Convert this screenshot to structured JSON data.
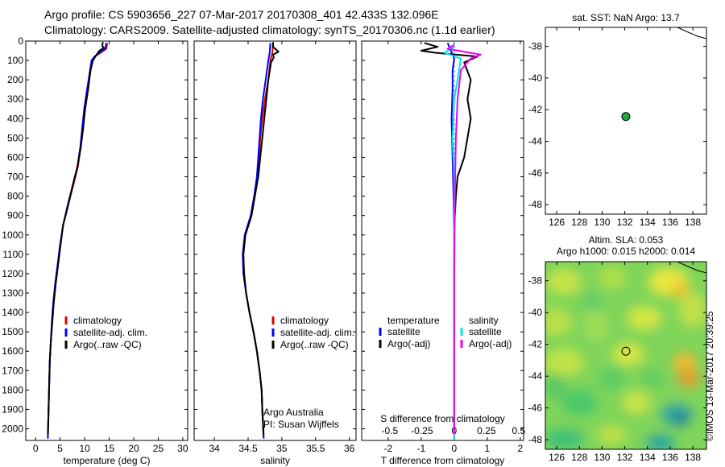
{
  "title_line1": "Argo profile: CS 5903656_227 07-Mar-2017 20170308_401 42.433S 132.096E",
  "title_line2": "Climatology: CARS2009. Satellite-adjusted climatology: synTS_20170306.nc (1.1d earlier)",
  "sst_title": "sat. SST: NaN Argo: 13.7",
  "sla_title1": "Altim. SLA: 0.053",
  "sla_title2": "Argo h1000: 0.015 h2000: 0.014",
  "watermark": "©IMOS 13-Mar-2017 20:39:25",
  "credits": [
    "Argo Australia",
    "PI: Susan Wijffels"
  ],
  "colors": {
    "climatology": "#e00000",
    "satellite": "#0000ff",
    "argo": "#000000",
    "sal_sat": "#00e5ee",
    "sal_argo": "#ee00ee"
  },
  "chart_data": [
    {
      "type": "line",
      "id": "temperature",
      "xlabel": "temperature (deg C)",
      "xlim": [
        -2,
        31
      ],
      "ylim": [
        2060,
        0
      ],
      "xticks": [
        0,
        5,
        10,
        15,
        20,
        25,
        30
      ],
      "yticks": [
        0,
        100,
        200,
        300,
        400,
        500,
        600,
        700,
        800,
        900,
        1000,
        1100,
        1200,
        1300,
        1400,
        1500,
        1600,
        1700,
        1800,
        1900,
        2000
      ],
      "legend": [
        "climatology",
        "satellite-adj. clim.",
        "Argo(..raw -QC)"
      ],
      "series": [
        {
          "name": "climatology",
          "pts": [
            [
              14.6,
              10
            ],
            [
              14.4,
              40
            ],
            [
              13.3,
              60
            ],
            [
              12.0,
              80
            ],
            [
              11.6,
              100
            ],
            [
              11.2,
              150
            ],
            [
              10.6,
              250
            ],
            [
              10.0,
              350
            ],
            [
              9.6,
              450
            ],
            [
              9.2,
              550
            ],
            [
              8.6,
              650
            ],
            [
              7.6,
              750
            ],
            [
              6.6,
              850
            ],
            [
              5.6,
              950
            ],
            [
              5.1,
              1050
            ],
            [
              4.6,
              1150
            ],
            [
              4.1,
              1250
            ],
            [
              3.7,
              1350
            ],
            [
              3.4,
              1450
            ],
            [
              3.1,
              1550
            ],
            [
              2.9,
              1650
            ],
            [
              2.8,
              1750
            ],
            [
              2.7,
              1850
            ],
            [
              2.6,
              1950
            ],
            [
              2.5,
              2050
            ]
          ]
        },
        {
          "name": "satellite-adj. clim.",
          "pts": [
            [
              14.4,
              10
            ],
            [
              14.2,
              40
            ],
            [
              13.0,
              60
            ],
            [
              12.0,
              80
            ],
            [
              11.4,
              100
            ],
            [
              11.1,
              150
            ],
            [
              10.5,
              250
            ],
            [
              9.9,
              350
            ],
            [
              9.5,
              450
            ],
            [
              9.1,
              550
            ],
            [
              8.5,
              650
            ],
            [
              7.5,
              750
            ],
            [
              6.5,
              850
            ],
            [
              5.6,
              950
            ],
            [
              5.0,
              1050
            ],
            [
              4.5,
              1150
            ],
            [
              4.0,
              1250
            ],
            [
              3.6,
              1350
            ],
            [
              3.3,
              1450
            ],
            [
              3.1,
              1550
            ],
            [
              2.9,
              1650
            ],
            [
              2.8,
              1750
            ],
            [
              2.7,
              1850
            ],
            [
              2.6,
              1950
            ],
            [
              2.5,
              2050
            ]
          ]
        },
        {
          "name": "Argo(..raw -QC)",
          "pts": [
            [
              13.7,
              5
            ],
            [
              13.6,
              25
            ],
            [
              13.9,
              35
            ],
            [
              13.0,
              50
            ],
            [
              12.3,
              75
            ],
            [
              11.7,
              100
            ],
            [
              11.2,
              150
            ],
            [
              10.7,
              250
            ],
            [
              10.1,
              350
            ],
            [
              9.7,
              450
            ],
            [
              9.2,
              550
            ],
            [
              8.5,
              650
            ],
            [
              7.5,
              750
            ],
            [
              6.6,
              850
            ],
            [
              5.6,
              950
            ],
            [
              5.1,
              1050
            ],
            [
              4.6,
              1150
            ],
            [
              4.1,
              1250
            ],
            [
              3.7,
              1350
            ],
            [
              3.4,
              1450
            ],
            [
              3.1,
              1550
            ],
            [
              2.9,
              1650
            ],
            [
              2.8,
              1750
            ],
            [
              2.7,
              1850
            ],
            [
              2.6,
              1950
            ],
            [
              2.5,
              2030
            ]
          ]
        }
      ]
    },
    {
      "type": "line",
      "id": "salinity",
      "xlabel": "salinity",
      "xlim": [
        33.7,
        36.1
      ],
      "ylim": [
        2060,
        0
      ],
      "xticks": [
        34,
        34.5,
        35,
        35.5,
        36
      ],
      "legend": [
        "climatology",
        "satellite-adj. clim.",
        "Argo(..raw -QC)"
      ],
      "series": [
        {
          "name": "climatology",
          "pts": [
            [
              34.87,
              10
            ],
            [
              34.86,
              60
            ],
            [
              34.83,
              100
            ],
            [
              34.8,
              200
            ],
            [
              34.75,
              300
            ],
            [
              34.71,
              400
            ],
            [
              34.68,
              500
            ],
            [
              34.66,
              600
            ],
            [
              34.64,
              700
            ],
            [
              34.6,
              800
            ],
            [
              34.55,
              900
            ],
            [
              34.46,
              1000
            ],
            [
              34.43,
              1100
            ],
            [
              34.44,
              1200
            ],
            [
              34.47,
              1300
            ],
            [
              34.52,
              1400
            ],
            [
              34.58,
              1500
            ],
            [
              34.63,
              1600
            ],
            [
              34.67,
              1700
            ],
            [
              34.7,
              1800
            ],
            [
              34.71,
              1900
            ],
            [
              34.73,
              2050
            ]
          ]
        },
        {
          "name": "satellite-adj. clim.",
          "pts": [
            [
              34.83,
              10
            ],
            [
              34.82,
              60
            ],
            [
              34.8,
              100
            ],
            [
              34.76,
              200
            ],
            [
              34.72,
              300
            ],
            [
              34.69,
              400
            ],
            [
              34.67,
              500
            ],
            [
              34.65,
              600
            ],
            [
              34.63,
              700
            ],
            [
              34.59,
              800
            ],
            [
              34.54,
              900
            ],
            [
              34.45,
              1000
            ],
            [
              34.42,
              1100
            ],
            [
              34.43,
              1200
            ],
            [
              34.47,
              1300
            ],
            [
              34.52,
              1400
            ],
            [
              34.58,
              1500
            ],
            [
              34.63,
              1600
            ],
            [
              34.67,
              1700
            ],
            [
              34.7,
              1800
            ],
            [
              34.71,
              1900
            ],
            [
              34.73,
              2050
            ]
          ]
        },
        {
          "name": "Argo(..raw -QC)",
          "pts": [
            [
              34.87,
              5
            ],
            [
              34.87,
              30
            ],
            [
              34.95,
              55
            ],
            [
              34.87,
              70
            ],
            [
              34.88,
              85
            ],
            [
              34.84,
              110
            ],
            [
              34.8,
              200
            ],
            [
              34.77,
              300
            ],
            [
              34.74,
              400
            ],
            [
              34.71,
              500
            ],
            [
              34.68,
              600
            ],
            [
              34.65,
              700
            ],
            [
              34.6,
              800
            ],
            [
              34.55,
              900
            ],
            [
              34.46,
              1000
            ],
            [
              34.43,
              1100
            ],
            [
              34.44,
              1200
            ],
            [
              34.47,
              1300
            ],
            [
              34.52,
              1400
            ],
            [
              34.58,
              1500
            ],
            [
              34.63,
              1600
            ],
            [
              34.67,
              1700
            ],
            [
              34.7,
              1800
            ],
            [
              34.71,
              1900
            ],
            [
              34.73,
              2030
            ]
          ]
        }
      ]
    },
    {
      "type": "line",
      "id": "difference",
      "xlabel": "T difference from climatology",
      "xlabel_top": "S difference from climatology",
      "xlim": [
        -2.8,
        2.1
      ],
      "ylim": [
        2060,
        0
      ],
      "xticks": [
        -2,
        -1,
        0,
        1,
        2
      ],
      "xticks_s": [
        -0.5,
        -0.25,
        0,
        0.25,
        0.5
      ],
      "legend_t": [
        "temperature",
        "satellite",
        "Argo(-adj)"
      ],
      "legend_s": [
        "salinity",
        "satellite",
        "Argo(-adj)"
      ],
      "series": [
        {
          "name": "satellite",
          "pts": [
            [
              -0.2,
              10
            ],
            [
              -0.1,
              50
            ],
            [
              0,
              90
            ],
            [
              -0.05,
              150
            ],
            [
              -0.05,
              250
            ],
            [
              -0.08,
              400
            ],
            [
              -0.05,
              600
            ],
            [
              -0.02,
              800
            ],
            [
              0,
              1000
            ],
            [
              0,
              1500
            ],
            [
              0,
              2050
            ]
          ]
        },
        {
          "name": "Argo(-adj)",
          "pts": [
            [
              -0.9,
              10
            ],
            [
              -0.5,
              30
            ],
            [
              -1.0,
              50
            ],
            [
              -0.6,
              60
            ],
            [
              0.7,
              80
            ],
            [
              0.3,
              110
            ],
            [
              0.5,
              200
            ],
            [
              0.4,
              300
            ],
            [
              0.5,
              400
            ],
            [
              0.4,
              500
            ],
            [
              0.3,
              600
            ],
            [
              0.1,
              700
            ],
            [
              0.05,
              800
            ],
            [
              0.02,
              900
            ],
            [
              0,
              1000
            ],
            [
              0,
              1500
            ],
            [
              0,
              2030
            ]
          ]
        },
        {
          "name": "satellite",
          "pts": [
            [
              0,
              30
            ],
            [
              -0.3,
              60
            ],
            [
              0.2,
              90
            ],
            [
              0.1,
              200
            ],
            [
              0,
              300
            ],
            [
              -0.05,
              500
            ],
            [
              0,
              700
            ],
            [
              0,
              1000
            ],
            [
              0,
              2050
            ]
          ]
        },
        {
          "name": "Argo(-adj)",
          "pts": [
            [
              0,
              20
            ],
            [
              -0.2,
              40
            ],
            [
              0.8,
              70
            ],
            [
              0.5,
              90
            ],
            [
              0.2,
              150
            ],
            [
              0.1,
              300
            ],
            [
              0.05,
              500
            ],
            [
              0.02,
              800
            ],
            [
              0,
              1200
            ],
            [
              0,
              2030
            ]
          ]
        }
      ]
    },
    {
      "type": "scatter",
      "id": "sst_map",
      "xlim": [
        125,
        139.2
      ],
      "ylim": [
        -48.6,
        -36.8
      ],
      "xticks": [
        126,
        128,
        130,
        132,
        134,
        136,
        138
      ],
      "yticks": [
        -38,
        -40,
        -42,
        -44,
        -46,
        -48
      ],
      "points": [
        {
          "x": 132.096,
          "y": -42.433
        }
      ]
    },
    {
      "type": "heatmap",
      "id": "sla_map",
      "xlim": [
        125,
        139.2
      ],
      "ylim": [
        -48.6,
        -36.8
      ],
      "xticks": [
        126,
        128,
        130,
        132,
        134,
        136,
        138
      ],
      "yticks": [
        -38,
        -40,
        -42,
        -44,
        -46,
        -48
      ],
      "points": [
        {
          "x": 132.096,
          "y": -42.433
        }
      ]
    }
  ]
}
